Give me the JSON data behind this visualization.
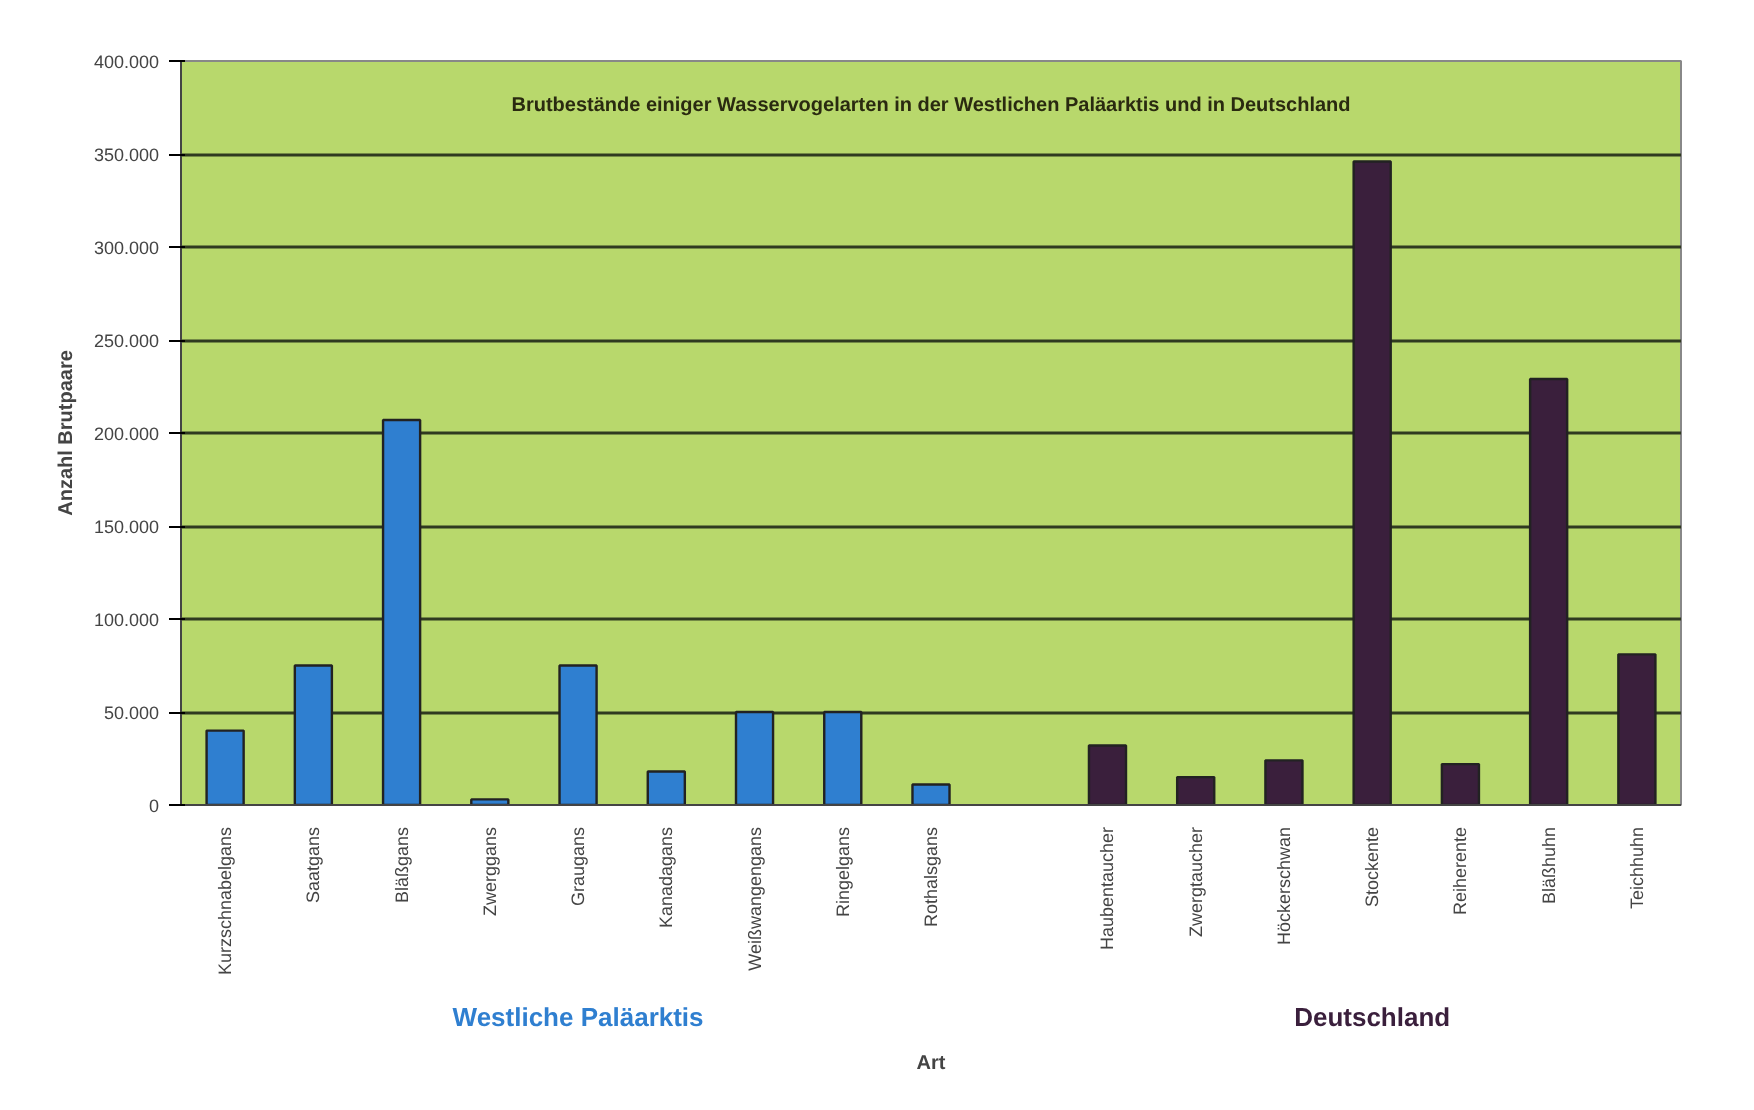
{
  "chart_data": {
    "type": "bar",
    "title": "Brutbestände einiger Wasservogelarten in der Westlichen Paläarktis und in Deutschland",
    "xlabel": "Art",
    "ylabel": "Anzahl Brutpaare",
    "categories": [
      "Kurzschnabelgans",
      "Saatgans",
      "Bläßgans",
      "Zwerggans",
      "Graugans",
      "Kanadagans",
      "Weißwangengans",
      "Ringelgans",
      "Rothalsgans",
      null,
      "Haubentaucher",
      "Zwergtaucher",
      "Höckerschwan",
      "Stockente",
      "Reiherente",
      "Bläßhuhn",
      "Teichhuhn"
    ],
    "series": [
      {
        "name": "Westliche Paläarktis",
        "color": "#2f7fd0",
        "values": [
          40000,
          75000,
          207000,
          3000,
          75000,
          18000,
          50000,
          50000,
          11000,
          null,
          null,
          null,
          null,
          null,
          null,
          null,
          null
        ]
      },
      {
        "name": "Deutschland",
        "color": "#3a1f3c",
        "values": [
          null,
          null,
          null,
          null,
          null,
          null,
          null,
          null,
          null,
          null,
          32000,
          15000,
          24000,
          346000,
          22000,
          229000,
          81000
        ]
      }
    ],
    "ylim": [
      0,
      400000
    ],
    "yticks": [
      {
        "value": 0,
        "label": "0"
      },
      {
        "value": 50000,
        "label": "50.000"
      },
      {
        "value": 100000,
        "label": "100.000"
      },
      {
        "value": 150000,
        "label": "150.000"
      },
      {
        "value": 200000,
        "label": "200.000"
      },
      {
        "value": 250000,
        "label": "250.000"
      },
      {
        "value": 300000,
        "label": "300.000"
      },
      {
        "value": 350000,
        "label": "350.000"
      },
      {
        "value": 400000,
        "label": "400.000"
      }
    ],
    "grid": "y"
  }
}
